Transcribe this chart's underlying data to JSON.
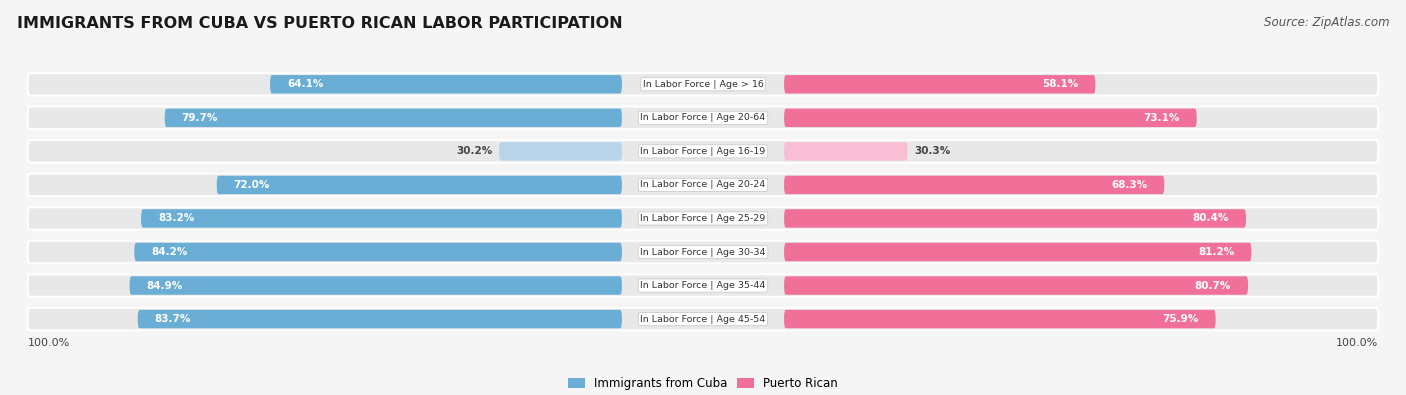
{
  "title": "IMMIGRANTS FROM CUBA VS PUERTO RICAN LABOR PARTICIPATION",
  "source": "Source: ZipAtlas.com",
  "categories": [
    "In Labor Force | Age > 16",
    "In Labor Force | Age 20-64",
    "In Labor Force | Age 16-19",
    "In Labor Force | Age 20-24",
    "In Labor Force | Age 25-29",
    "In Labor Force | Age 30-34",
    "In Labor Force | Age 35-44",
    "In Labor Force | Age 45-54"
  ],
  "cuba_values": [
    64.1,
    79.7,
    30.2,
    72.0,
    83.2,
    84.2,
    84.9,
    83.7
  ],
  "pr_values": [
    58.1,
    73.1,
    30.3,
    68.3,
    80.4,
    81.2,
    80.7,
    75.9
  ],
  "cuba_color": "#6aaed6",
  "pr_color": "#f07099",
  "cuba_color_light": "#b8d4ea",
  "pr_color_light": "#f9bdd4",
  "row_bg_color": "#e8e8e8",
  "background_color": "#f5f5f5",
  "legend_cuba": "Immigrants from Cuba",
  "legend_pr": "Puerto Rican",
  "bottom_left_label": "100.0%",
  "bottom_right_label": "100.0%"
}
